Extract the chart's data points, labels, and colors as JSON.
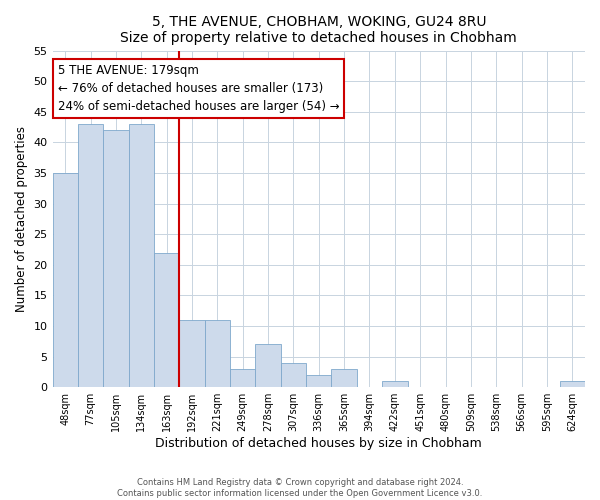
{
  "title": "5, THE AVENUE, CHOBHAM, WOKING, GU24 8RU",
  "subtitle": "Size of property relative to detached houses in Chobham",
  "xlabel": "Distribution of detached houses by size in Chobham",
  "ylabel": "Number of detached properties",
  "footer_line1": "Contains HM Land Registry data © Crown copyright and database right 2024.",
  "footer_line2": "Contains public sector information licensed under the Open Government Licence v3.0.",
  "bar_labels": [
    "48sqm",
    "77sqm",
    "105sqm",
    "134sqm",
    "163sqm",
    "192sqm",
    "221sqm",
    "249sqm",
    "278sqm",
    "307sqm",
    "336sqm",
    "365sqm",
    "394sqm",
    "422sqm",
    "451sqm",
    "480sqm",
    "509sqm",
    "538sqm",
    "566sqm",
    "595sqm",
    "624sqm"
  ],
  "bar_values": [
    35,
    43,
    42,
    43,
    22,
    11,
    11,
    3,
    7,
    4,
    2,
    3,
    0,
    1,
    0,
    0,
    0,
    0,
    0,
    0,
    1
  ],
  "bar_color": "#cddaeb",
  "bar_edge_color": "#7fa8cc",
  "ylim": [
    0,
    55
  ],
  "yticks": [
    0,
    5,
    10,
    15,
    20,
    25,
    30,
    35,
    40,
    45,
    50,
    55
  ],
  "property_line_x": 4.5,
  "property_line_color": "#cc0000",
  "annotation_title": "5 THE AVENUE: 179sqm",
  "annotation_line1": "← 76% of detached houses are smaller (173)",
  "annotation_line2": "24% of semi-detached houses are larger (54) →",
  "annotation_box_color": "#ffffff",
  "annotation_box_edge": "#cc0000",
  "background_color": "#ffffff",
  "grid_color": "#c8d4e0"
}
